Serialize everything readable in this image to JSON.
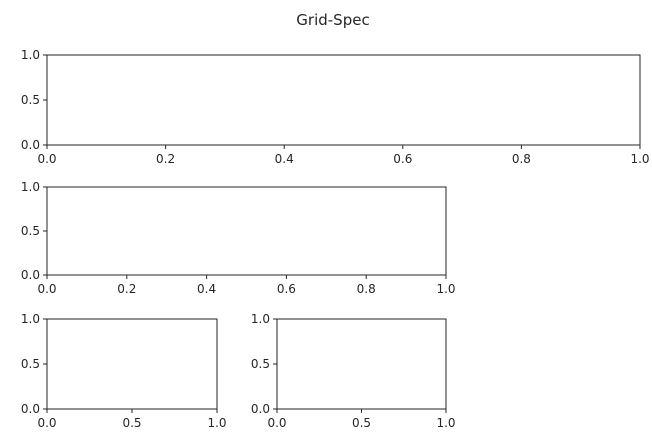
{
  "figure": {
    "title": "Grid-Spec"
  },
  "chart_data": [
    {
      "type": "scatter",
      "x": [],
      "y": [],
      "xlim": [
        0,
        1
      ],
      "ylim": [
        0,
        1
      ],
      "xticks": [
        0,
        0.2,
        0.4,
        0.6,
        0.8,
        1
      ],
      "xtick_labels": [
        "0.0",
        "0.2",
        "0.4",
        "0.6",
        "0.8",
        "1.0"
      ],
      "yticks": [
        0,
        0.5,
        1
      ],
      "ytick_labels": [
        "0.0",
        "0.5",
        "1.0"
      ],
      "grid": false
    },
    {
      "type": "scatter",
      "x": [],
      "y": [],
      "xlim": [
        0,
        1
      ],
      "ylim": [
        0,
        1
      ],
      "xticks": [
        0,
        0.2,
        0.4,
        0.6,
        0.8,
        1
      ],
      "xtick_labels": [
        "0.0",
        "0.2",
        "0.4",
        "0.6",
        "0.8",
        "1.0"
      ],
      "yticks": [
        0,
        0.5,
        1
      ],
      "ytick_labels": [
        "0.0",
        "0.5",
        "1.0"
      ],
      "grid": false
    },
    {
      "type": "scatter",
      "x": [],
      "y": [],
      "xlim": [
        0,
        1
      ],
      "ylim": [
        0,
        1
      ],
      "xticks": [
        0,
        0.5,
        1
      ],
      "xtick_labels": [
        "0.0",
        "0.5",
        "1.0"
      ],
      "yticks": [
        0,
        0.5,
        1
      ],
      "ytick_labels": [
        "0.0",
        "0.5",
        "1.0"
      ],
      "grid": false
    },
    {
      "type": "scatter",
      "x": [],
      "y": [],
      "xlim": [
        0,
        1
      ],
      "ylim": [
        0,
        1
      ],
      "xticks": [
        0,
        0.5,
        1
      ],
      "xtick_labels": [
        "0.0",
        "0.5",
        "1.0"
      ],
      "yticks": [
        0,
        0.5,
        1
      ],
      "ytick_labels": [
        "0.0",
        "0.5",
        "1.0"
      ],
      "grid": false
    }
  ]
}
